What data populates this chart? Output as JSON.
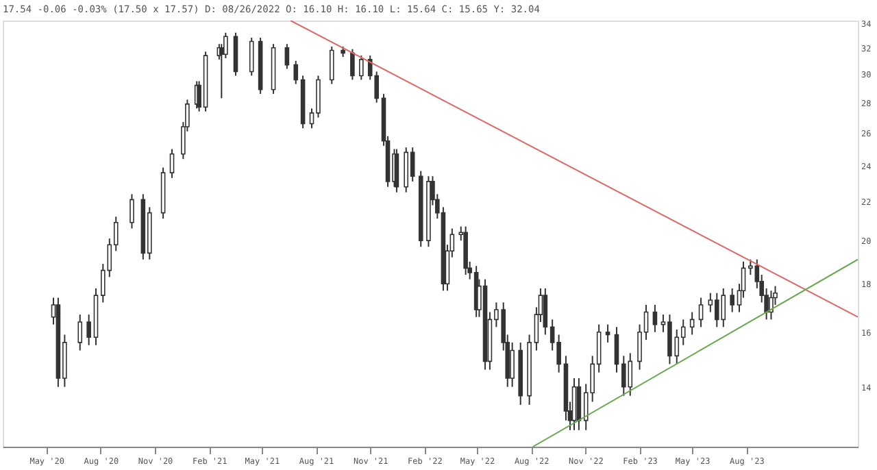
{
  "chart_data": {
    "type": "candlestick",
    "title": "17.54 -0.06 -0.03% (17.50 x 17.57) D: 08/26/2022 O: 16.10 H: 16.10 L: 15.64 C: 15.65 Y: 32.04",
    "color": "#333333",
    "x": [
      "2020-05-13",
      "2020-05-21",
      "2020-06-01",
      "2020-06-27",
      "2020-07-12",
      "2020-07-24",
      "2020-08-05",
      "2020-08-16",
      "2020-08-27",
      "2020-09-23",
      "2020-10-12",
      "2020-10-23",
      "2020-11-15",
      "2020-11-30",
      "2020-12-19",
      "2020-12-26",
      "2021-01-11",
      "2021-01-15",
      "2021-01-26",
      "2021-02-18",
      "2021-02-22",
      "2021-03-01",
      "2021-03-18",
      "2021-04-14",
      "2021-04-29",
      "2021-05-21",
      "2021-06-13",
      "2021-06-28",
      "2021-07-10",
      "2021-07-25",
      "2021-08-05",
      "2021-08-28",
      "2021-09-16",
      "2021-10-02",
      "2021-10-17",
      "2021-11-01",
      "2021-11-12",
      "2021-11-24",
      "2021-12-01",
      "2021-12-12",
      "2021-12-16",
      "2022-01-01",
      "2022-01-12",
      "2022-01-26",
      "2022-02-08",
      "2022-02-15",
      "2022-02-23",
      "2022-03-05",
      "2022-03-12",
      "2022-03-20",
      "2022-04-04",
      "2022-04-12",
      "2022-04-19",
      "2022-04-30",
      "2022-05-05",
      "2022-05-15",
      "2022-05-23",
      "2022-06-03",
      "2022-06-15",
      "2022-06-22",
      "2022-06-30",
      "2022-07-14",
      "2022-07-29",
      "2022-08-10",
      "2022-08-17",
      "2022-08-25",
      "2022-09-06",
      "2022-09-17",
      "2022-09-29",
      "2022-10-06",
      "2022-10-13",
      "2022-10-21",
      "2022-11-02",
      "2022-11-13",
      "2022-11-24",
      "2022-12-09",
      "2022-12-24",
      "2023-01-05",
      "2023-01-16",
      "2023-02-01",
      "2023-02-12",
      "2023-02-27",
      "2023-03-13",
      "2023-03-24",
      "2023-04-05",
      "2023-04-16",
      "2023-05-01",
      "2023-05-16",
      "2023-06-01",
      "2023-06-12",
      "2023-06-23",
      "2023-07-08",
      "2023-07-20",
      "2023-07-27",
      "2023-08-08",
      "2023-08-19",
      "2023-08-27",
      "2023-09-04",
      "2023-09-12",
      "2023-09-19"
    ],
    "ohlc": [
      [
        16.6,
        17.4,
        16.3,
        17.1
      ],
      [
        17.1,
        17.4,
        14.0,
        14.3
      ],
      [
        14.3,
        15.9,
        14.0,
        15.6
      ],
      [
        15.6,
        16.7,
        15.3,
        16.4
      ],
      [
        16.4,
        16.7,
        15.5,
        15.8
      ],
      [
        15.8,
        17.8,
        15.5,
        17.5
      ],
      [
        17.5,
        18.9,
        17.2,
        18.6
      ],
      [
        18.6,
        20.1,
        18.3,
        19.8
      ],
      [
        19.8,
        21.2,
        19.5,
        20.9
      ],
      [
        20.9,
        22.4,
        20.6,
        22.1
      ],
      [
        22.1,
        22.4,
        19.1,
        19.4
      ],
      [
        19.4,
        21.7,
        19.1,
        21.4
      ],
      [
        21.4,
        23.9,
        21.1,
        23.6
      ],
      [
        23.6,
        25.0,
        23.3,
        24.7
      ],
      [
        24.7,
        26.7,
        24.4,
        26.4
      ],
      [
        26.4,
        28.2,
        26.1,
        27.9
      ],
      [
        27.9,
        29.5,
        27.6,
        29.2
      ],
      [
        29.2,
        29.5,
        27.4,
        27.7
      ],
      [
        27.7,
        31.7,
        27.4,
        31.4
      ],
      [
        31.4,
        32.3,
        31.1,
        32.0
      ],
      [
        32.0,
        32.3,
        28.3,
        31.5
      ],
      [
        31.5,
        33.2,
        31.2,
        32.9
      ],
      [
        32.9,
        33.2,
        29.9,
        30.2
      ],
      [
        30.2,
        32.8,
        29.9,
        32.5
      ],
      [
        32.5,
        32.8,
        28.6,
        28.9
      ],
      [
        28.9,
        32.3,
        28.6,
        32.0
      ],
      [
        32.0,
        32.3,
        30.4,
        30.7
      ],
      [
        30.7,
        31.0,
        29.3,
        29.6
      ],
      [
        29.6,
        29.9,
        26.3,
        26.6
      ],
      [
        26.6,
        27.6,
        26.3,
        27.3
      ],
      [
        27.3,
        29.9,
        27.0,
        29.6
      ],
      [
        29.6,
        32.1,
        29.3,
        31.8
      ],
      [
        31.8,
        32.1,
        31.3,
        31.6
      ],
      [
        31.6,
        31.9,
        29.6,
        29.9
      ],
      [
        29.9,
        31.4,
        29.6,
        31.1
      ],
      [
        31.1,
        31.4,
        29.6,
        29.9
      ],
      [
        29.9,
        30.2,
        28.0,
        28.3
      ],
      [
        28.3,
        28.6,
        25.2,
        25.5
      ],
      [
        25.5,
        25.8,
        22.8,
        23.1
      ],
      [
        23.1,
        25.0,
        22.8,
        24.7
      ],
      [
        24.7,
        25.0,
        22.5,
        22.8
      ],
      [
        22.8,
        25.1,
        22.5,
        24.8
      ],
      [
        24.8,
        25.1,
        23.1,
        23.4
      ],
      [
        23.4,
        23.7,
        19.7,
        20.0
      ],
      [
        20.0,
        23.4,
        19.7,
        23.1
      ],
      [
        23.1,
        23.4,
        21.8,
        22.1
      ],
      [
        22.1,
        22.4,
        21.1,
        21.4
      ],
      [
        21.4,
        21.7,
        17.7,
        18.0
      ],
      [
        18.0,
        19.8,
        17.7,
        19.5
      ],
      [
        19.5,
        20.6,
        19.2,
        20.3
      ],
      [
        20.3,
        20.7,
        20.0,
        20.4
      ],
      [
        20.4,
        20.7,
        18.4,
        18.7
      ],
      [
        18.7,
        19.0,
        18.2,
        18.5
      ],
      [
        18.5,
        18.8,
        16.6,
        16.9
      ],
      [
        16.9,
        18.2,
        16.6,
        17.9
      ],
      [
        17.9,
        18.2,
        14.6,
        14.9
      ],
      [
        14.9,
        16.8,
        14.6,
        16.5
      ],
      [
        16.5,
        17.2,
        16.2,
        16.9
      ],
      [
        16.9,
        17.2,
        15.3,
        15.6
      ],
      [
        15.6,
        15.9,
        14.0,
        14.3
      ],
      [
        14.3,
        15.6,
        14.0,
        15.3
      ],
      [
        15.3,
        15.6,
        13.4,
        13.7
      ],
      [
        13.7,
        15.9,
        13.4,
        15.6
      ],
      [
        15.6,
        17.0,
        15.3,
        16.7
      ],
      [
        16.7,
        17.8,
        16.4,
        17.5
      ],
      [
        17.5,
        17.8,
        15.9,
        16.2
      ],
      [
        16.2,
        16.5,
        15.3,
        15.6
      ],
      [
        15.6,
        15.9,
        14.5,
        14.8
      ],
      [
        14.8,
        15.1,
        12.9,
        13.2
      ],
      [
        13.2,
        13.5,
        12.6,
        12.9
      ],
      [
        12.9,
        14.3,
        12.6,
        14.0
      ],
      [
        14.0,
        14.3,
        12.6,
        12.9
      ],
      [
        12.9,
        14.1,
        12.6,
        13.8
      ],
      [
        13.8,
        15.1,
        13.5,
        14.8
      ],
      [
        14.8,
        16.3,
        14.5,
        16.0
      ],
      [
        16.0,
        16.3,
        15.6,
        15.9
      ],
      [
        15.9,
        16.2,
        14.5,
        14.8
      ],
      [
        14.8,
        15.1,
        13.7,
        14.0
      ],
      [
        14.0,
        15.2,
        13.7,
        14.9
      ],
      [
        14.9,
        16.3,
        14.6,
        16.0
      ],
      [
        16.0,
        17.1,
        15.7,
        16.8
      ],
      [
        16.8,
        17.1,
        16.0,
        16.3
      ],
      [
        16.3,
        16.7,
        16.0,
        16.4
      ],
      [
        16.4,
        16.7,
        14.8,
        15.1
      ],
      [
        15.1,
        16.1,
        14.8,
        15.8
      ],
      [
        15.8,
        16.5,
        15.5,
        16.2
      ],
      [
        16.2,
        16.8,
        15.9,
        16.5
      ],
      [
        16.5,
        17.4,
        16.2,
        17.1
      ],
      [
        17.1,
        17.6,
        16.8,
        17.3
      ],
      [
        17.3,
        17.6,
        16.2,
        16.5
      ],
      [
        16.5,
        17.8,
        16.2,
        17.5
      ],
      [
        17.5,
        17.8,
        16.8,
        17.1
      ],
      [
        17.1,
        18.0,
        16.8,
        17.7
      ],
      [
        17.7,
        19.0,
        17.4,
        18.7
      ],
      [
        18.7,
        19.1,
        18.4,
        18.8
      ],
      [
        18.8,
        19.1,
        17.8,
        18.1
      ],
      [
        18.1,
        18.4,
        17.2,
        17.5
      ],
      [
        17.5,
        17.8,
        16.5,
        16.8
      ],
      [
        16.8,
        17.7,
        16.5,
        17.4
      ],
      [
        17.4,
        17.9,
        17.1,
        17.6
      ]
    ],
    "series": [
      {
        "type": "line",
        "color": "#e06666",
        "x": [
          "2021-06-19",
          "2024-02-06"
        ],
        "values": [
          34.2,
          16.6
        ]
      },
      {
        "type": "line",
        "color": "#6aa84f",
        "x": [
          "2022-08-04",
          "2024-02-06"
        ],
        "values": [
          12.1,
          19.1
        ]
      }
    ],
    "xlim": [
      "2020-02-17",
      "2024-02-06"
    ],
    "xticks": [
      {
        "value": "2020-05-01",
        "label": "May '20"
      },
      {
        "value": "2020-08-01",
        "label": "Aug '20"
      },
      {
        "value": "2020-11-01",
        "label": "Nov '20"
      },
      {
        "value": "2021-02-01",
        "label": "Feb '21"
      },
      {
        "value": "2021-05-01",
        "label": "May '21"
      },
      {
        "value": "2021-08-01",
        "label": "Aug '21"
      },
      {
        "value": "2021-11-01",
        "label": "Nov '21"
      },
      {
        "value": "2022-02-01",
        "label": "Feb '22"
      },
      {
        "value": "2022-05-01",
        "label": "May '22"
      },
      {
        "value": "2022-08-01",
        "label": "Aug '22"
      },
      {
        "value": "2022-11-01",
        "label": "Nov '22"
      },
      {
        "value": "2023-02-01",
        "label": "Feb '23"
      },
      {
        "value": "2023-05-01",
        "label": "May '23"
      },
      {
        "value": "2023-08-01",
        "label": "Aug '23"
      }
    ],
    "ylim": [
      12.1,
      34.2
    ],
    "yticks": [
      14,
      16,
      18,
      20,
      22,
      24,
      26,
      28,
      30,
      32,
      34
    ],
    "log": true,
    "grid": false
  }
}
